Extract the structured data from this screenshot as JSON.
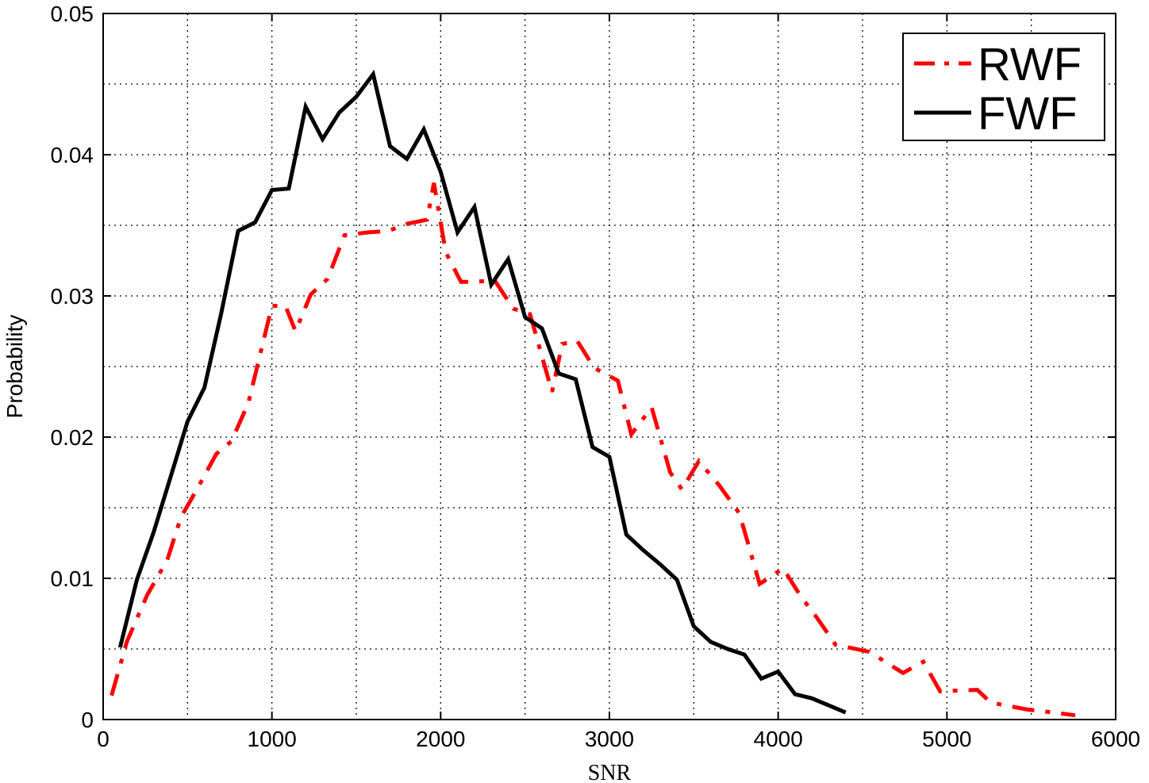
{
  "chart_data": {
    "type": "line",
    "title": "",
    "xlabel": "SNR",
    "ylabel": "Probability",
    "xlim": [
      0,
      6000
    ],
    "ylim": [
      0,
      0.05
    ],
    "x_ticks": [
      0,
      1000,
      2000,
      3000,
      4000,
      5000,
      6000
    ],
    "x_tick_labels": [
      "0",
      "1000",
      "2000",
      "3000",
      "4000",
      "5000",
      "6000"
    ],
    "y_ticks": [
      0,
      0.01,
      0.02,
      0.03,
      0.04,
      0.05
    ],
    "y_tick_labels": [
      "0",
      "0.01",
      "0.02",
      "0.03",
      "0.04",
      "0.05"
    ],
    "grid": true,
    "legend_position": "top-right",
    "series": [
      {
        "name": "RWF",
        "color": "#ff0000",
        "style": "dash-dot",
        "x": [
          50,
          140,
          260,
          380,
          460,
          560,
          670,
          760,
          860,
          1000,
          1080,
          1140,
          1230,
          1330,
          1430,
          1570,
          1690,
          1800,
          1920,
          1960,
          2030,
          2120,
          2200,
          2320,
          2430,
          2530,
          2660,
          2720,
          2810,
          2910,
          3050,
          3130,
          3250,
          3360,
          3430,
          3530,
          3650,
          3770,
          3890,
          4030,
          4130,
          4230,
          4340,
          4540,
          4740,
          4860,
          4960,
          5180,
          5260,
          5480,
          5630,
          5760
        ],
        "y": [
          0.0017,
          0.0055,
          0.0088,
          0.0113,
          0.0143,
          0.0164,
          0.0188,
          0.0197,
          0.0224,
          0.0293,
          0.0293,
          0.0275,
          0.0301,
          0.0312,
          0.0343,
          0.0345,
          0.0346,
          0.0351,
          0.0354,
          0.038,
          0.0331,
          0.031,
          0.031,
          0.0311,
          0.0291,
          0.0287,
          0.0232,
          0.0266,
          0.0268,
          0.0249,
          0.024,
          0.0202,
          0.0221,
          0.0175,
          0.0163,
          0.0183,
          0.0166,
          0.0146,
          0.0096,
          0.0107,
          0.0088,
          0.0072,
          0.0053,
          0.0048,
          0.0033,
          0.0041,
          0.002,
          0.0021,
          0.0012,
          0.0007,
          0.0005,
          0.0003
        ]
      },
      {
        "name": "FWF",
        "color": "#000000",
        "style": "solid",
        "x": [
          100,
          200,
          300,
          400,
          500,
          600,
          700,
          800,
          900,
          1000,
          1100,
          1200,
          1300,
          1400,
          1500,
          1600,
          1700,
          1800,
          1900,
          2000,
          2100,
          2200,
          2300,
          2400,
          2500,
          2600,
          2700,
          2800,
          2900,
          3000,
          3100,
          3200,
          3300,
          3400,
          3500,
          3600,
          3700,
          3800,
          3900,
          4000,
          4100,
          4200,
          4300,
          4400
        ],
        "y": [
          0.0051,
          0.0099,
          0.0133,
          0.0172,
          0.0211,
          0.0235,
          0.0288,
          0.0346,
          0.0352,
          0.0375,
          0.0376,
          0.0434,
          0.0411,
          0.043,
          0.0441,
          0.0457,
          0.0406,
          0.0397,
          0.0418,
          0.0388,
          0.0345,
          0.0363,
          0.0308,
          0.0326,
          0.0285,
          0.0277,
          0.0245,
          0.0241,
          0.0193,
          0.0186,
          0.0131,
          0.012,
          0.011,
          0.0099,
          0.0066,
          0.0055,
          0.005,
          0.0046,
          0.0029,
          0.0034,
          0.0018,
          0.0015,
          0.001,
          0.0005
        ]
      }
    ]
  }
}
